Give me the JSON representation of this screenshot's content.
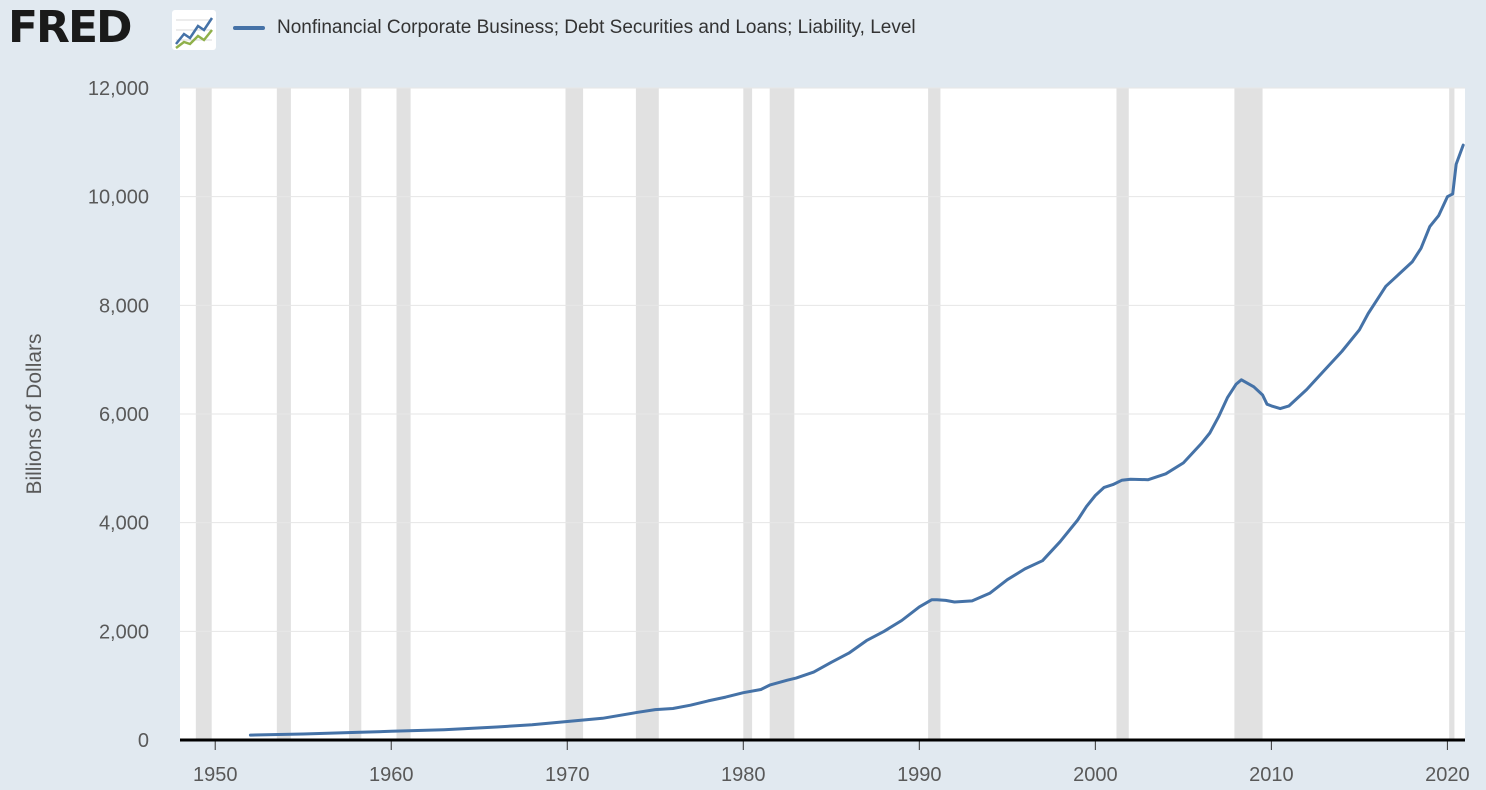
{
  "logo": {
    "text": "FRED"
  },
  "colors": {
    "background": "#e1e9f0",
    "plot_background": "#ffffff",
    "line": "#4572a7",
    "recession": "#e1e1e1",
    "grid": "#e6e6e6",
    "axis": "#000000",
    "tick_text": "#595959"
  },
  "icons": {
    "logo_chart": "fred-chart-icon"
  },
  "chart_data": {
    "type": "line",
    "title": "",
    "xlabel": "",
    "ylabel": "Billions of Dollars",
    "xlim": [
      1948,
      2021
    ],
    "ylim": [
      0,
      12000
    ],
    "xticks": [
      1950,
      1960,
      1970,
      1980,
      1990,
      2000,
      2010,
      2020
    ],
    "yticks": [
      0,
      2000,
      4000,
      6000,
      8000,
      10000,
      12000
    ],
    "ytick_labels": [
      "0",
      "2,000",
      "4,000",
      "6,000",
      "8,000",
      "10,000",
      "12,000"
    ],
    "grid": "horizontal",
    "legend": "top-left",
    "recessions": [
      [
        1948.9,
        1949.8
      ],
      [
        1953.5,
        1954.3
      ],
      [
        1957.6,
        1958.3
      ],
      [
        1960.3,
        1961.1
      ],
      [
        1969.9,
        1970.9
      ],
      [
        1973.9,
        1975.2
      ],
      [
        1980.0,
        1980.5
      ],
      [
        1981.5,
        1982.9
      ],
      [
        1990.5,
        1991.2
      ],
      [
        2001.2,
        2001.9
      ],
      [
        2007.9,
        2009.5
      ],
      [
        2020.1,
        2020.4
      ]
    ],
    "series": [
      {
        "name": "Nonfinancial Corporate Business; Debt Securities and Loans; Liability, Level",
        "points": [
          [
            1952.0,
            90
          ],
          [
            1955.0,
            110
          ],
          [
            1958.0,
            140
          ],
          [
            1960.0,
            160
          ],
          [
            1963.0,
            190
          ],
          [
            1966.0,
            240
          ],
          [
            1968.0,
            280
          ],
          [
            1970.0,
            340
          ],
          [
            1972.0,
            400
          ],
          [
            1974.0,
            510
          ],
          [
            1975.0,
            560
          ],
          [
            1976.0,
            580
          ],
          [
            1977.0,
            640
          ],
          [
            1978.0,
            720
          ],
          [
            1979.0,
            790
          ],
          [
            1980.0,
            870
          ],
          [
            1981.0,
            930
          ],
          [
            1981.5,
            1010
          ],
          [
            1982.5,
            1100
          ],
          [
            1983.0,
            1140
          ],
          [
            1984.0,
            1250
          ],
          [
            1985.0,
            1430
          ],
          [
            1986.0,
            1600
          ],
          [
            1987.0,
            1830
          ],
          [
            1988.0,
            2000
          ],
          [
            1989.0,
            2200
          ],
          [
            1990.0,
            2450
          ],
          [
            1990.7,
            2580
          ],
          [
            1991.0,
            2580
          ],
          [
            1991.5,
            2570
          ],
          [
            1992.0,
            2540
          ],
          [
            1993.0,
            2560
          ],
          [
            1994.0,
            2700
          ],
          [
            1995.0,
            2950
          ],
          [
            1996.0,
            3150
          ],
          [
            1997.0,
            3300
          ],
          [
            1998.0,
            3650
          ],
          [
            1999.0,
            4050
          ],
          [
            1999.5,
            4300
          ],
          [
            2000.0,
            4500
          ],
          [
            2000.5,
            4650
          ],
          [
            2001.0,
            4700
          ],
          [
            2001.5,
            4780
          ],
          [
            2002.0,
            4800
          ],
          [
            2003.0,
            4790
          ],
          [
            2004.0,
            4900
          ],
          [
            2005.0,
            5100
          ],
          [
            2006.0,
            5450
          ],
          [
            2006.5,
            5650
          ],
          [
            2007.0,
            5950
          ],
          [
            2007.5,
            6300
          ],
          [
            2008.0,
            6550
          ],
          [
            2008.3,
            6630
          ],
          [
            2009.0,
            6500
          ],
          [
            2009.5,
            6350
          ],
          [
            2009.75,
            6180
          ],
          [
            2010.0,
            6150
          ],
          [
            2010.5,
            6100
          ],
          [
            2011.0,
            6150
          ],
          [
            2012.0,
            6450
          ],
          [
            2013.0,
            6800
          ],
          [
            2014.0,
            7150
          ],
          [
            2015.0,
            7550
          ],
          [
            2015.5,
            7850
          ],
          [
            2016.0,
            8100
          ],
          [
            2016.5,
            8350
          ],
          [
            2017.0,
            8500
          ],
          [
            2018.0,
            8800
          ],
          [
            2018.5,
            9050
          ],
          [
            2019.0,
            9450
          ],
          [
            2019.5,
            9650
          ],
          [
            2020.0,
            10000
          ],
          [
            2020.3,
            10050
          ],
          [
            2020.5,
            10600
          ],
          [
            2020.9,
            10950
          ]
        ]
      }
    ]
  }
}
